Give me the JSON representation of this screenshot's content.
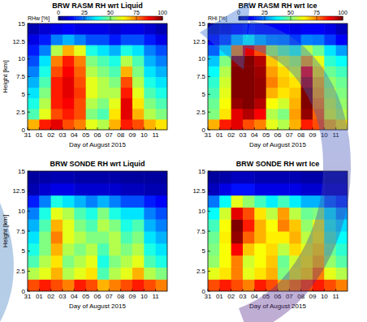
{
  "chart_data": [
    {
      "type": "heatmap",
      "title": "BRW RASM RH wrt Liquid",
      "xlabel": "Day of August 2015",
      "ylabel": "Height [km]",
      "x": [
        "31",
        "01",
        "02",
        "03",
        "04",
        "05",
        "06",
        "07",
        "08",
        "09",
        "10",
        "11"
      ],
      "y_bins": [
        0,
        1.5,
        3,
        4.5,
        6,
        7.5,
        9,
        10.5,
        12,
        13.5,
        15
      ],
      "ylim": [
        0,
        15
      ],
      "yticks": [
        0,
        2.5,
        5,
        7.5,
        10,
        12.5,
        15
      ],
      "cells": [
        [
          70,
          85,
          90,
          80,
          75,
          60,
          55,
          70,
          85,
          80,
          70,
          65
        ],
        [
          45,
          60,
          80,
          85,
          80,
          50,
          45,
          65,
          90,
          70,
          55,
          50
        ],
        [
          40,
          55,
          85,
          88,
          80,
          55,
          50,
          60,
          90,
          65,
          50,
          45
        ],
        [
          35,
          50,
          85,
          90,
          82,
          60,
          55,
          55,
          85,
          60,
          45,
          40
        ],
        [
          30,
          45,
          85,
          90,
          80,
          60,
          55,
          50,
          80,
          55,
          40,
          35
        ],
        [
          25,
          40,
          80,
          88,
          78,
          55,
          50,
          45,
          70,
          50,
          35,
          30
        ],
        [
          20,
          35,
          75,
          85,
          75,
          50,
          45,
          40,
          55,
          45,
          30,
          25
        ],
        [
          15,
          25,
          55,
          70,
          60,
          40,
          35,
          30,
          40,
          35,
          25,
          20
        ],
        [
          10,
          15,
          25,
          30,
          25,
          20,
          20,
          15,
          20,
          20,
          15,
          10
        ],
        [
          5,
          8,
          10,
          12,
          10,
          10,
          10,
          8,
          10,
          10,
          8,
          5
        ]
      ],
      "colorbar": {
        "label": "RHw [%]",
        "lim": [
          0,
          100
        ],
        "ticks": [
          0,
          25,
          50,
          75,
          100
        ]
      }
    },
    {
      "type": "heatmap",
      "title": "BRW RASM RH wrt Ice",
      "xlabel": "Day of August 2015",
      "x": [
        "31",
        "01",
        "02",
        "03",
        "04",
        "05",
        "06",
        "07",
        "08",
        "09",
        "10",
        "11"
      ],
      "y_bins": [
        0,
        1.5,
        3,
        4.5,
        6,
        7.5,
        9,
        10.5,
        12,
        13.5,
        15
      ],
      "ylim": [
        0,
        15
      ],
      "yticks": [
        0,
        2.5,
        5,
        7.5,
        10,
        12.5,
        15
      ],
      "cells": [
        [
          70,
          85,
          90,
          80,
          75,
          60,
          55,
          70,
          85,
          80,
          70,
          65
        ],
        [
          50,
          65,
          90,
          95,
          88,
          55,
          50,
          72,
          98,
          78,
          60,
          55
        ],
        [
          48,
          62,
          98,
          100,
          95,
          62,
          58,
          70,
          100,
          75,
          58,
          52
        ],
        [
          45,
          60,
          100,
          100,
          98,
          70,
          65,
          68,
          100,
          72,
          55,
          50
        ],
        [
          42,
          58,
          100,
          100,
          98,
          75,
          68,
          65,
          95,
          70,
          52,
          48
        ],
        [
          38,
          55,
          100,
          100,
          97,
          72,
          66,
          60,
          88,
          66,
          48,
          44
        ],
        [
          32,
          50,
          98,
          100,
          95,
          68,
          60,
          55,
          72,
          60,
          42,
          38
        ],
        [
          22,
          35,
          75,
          90,
          80,
          55,
          48,
          42,
          55,
          48,
          35,
          28
        ],
        [
          12,
          18,
          30,
          38,
          30,
          25,
          24,
          18,
          25,
          24,
          18,
          12
        ],
        [
          5,
          8,
          12,
          14,
          12,
          12,
          12,
          10,
          12,
          12,
          10,
          6
        ]
      ],
      "colorbar": {
        "label": "RHi [%]",
        "lim": [
          0,
          100
        ],
        "ticks": [
          0,
          25,
          50,
          75,
          100
        ]
      }
    },
    {
      "type": "heatmap",
      "title": "BRW SONDE RH wrt Liquid",
      "xlabel": "Day of August 2015",
      "ylabel": "Height [km]",
      "x": [
        "31",
        "01",
        "02",
        "03",
        "04",
        "05",
        "06",
        "07",
        "08",
        "09",
        "10",
        "11"
      ],
      "y_bins": [
        0,
        1.5,
        3,
        4.5,
        6,
        7.5,
        9,
        10.5,
        12,
        13.5,
        15
      ],
      "ylim": [
        0,
        15
      ],
      "yticks": [
        0,
        2.5,
        5,
        7.5,
        10,
        12.5,
        15
      ],
      "cells": [
        [
          80,
          85,
          80,
          75,
          85,
          80,
          70,
          75,
          80,
          85,
          80,
          75
        ],
        [
          55,
          60,
          70,
          55,
          60,
          65,
          45,
          55,
          60,
          70,
          55,
          50
        ],
        [
          45,
          55,
          65,
          50,
          55,
          60,
          40,
          50,
          55,
          60,
          45,
          40
        ],
        [
          40,
          50,
          70,
          55,
          50,
          55,
          45,
          55,
          50,
          55,
          40,
          35
        ],
        [
          35,
          50,
          75,
          60,
          55,
          50,
          50,
          55,
          45,
          50,
          35,
          30
        ],
        [
          30,
          45,
          70,
          60,
          50,
          45,
          55,
          50,
          40,
          45,
          30,
          25
        ],
        [
          25,
          40,
          60,
          55,
          45,
          40,
          50,
          40,
          35,
          35,
          25,
          20
        ],
        [
          15,
          25,
          40,
          35,
          30,
          25,
          30,
          25,
          20,
          20,
          15,
          12
        ],
        [
          5,
          8,
          10,
          10,
          8,
          8,
          8,
          8,
          6,
          6,
          5,
          5
        ],
        [
          3,
          4,
          5,
          5,
          4,
          4,
          4,
          4,
          3,
          3,
          3,
          3
        ]
      ],
      "clim": [
        0,
        100
      ]
    },
    {
      "type": "heatmap",
      "title": "BRW SONDE RH wrt Ice",
      "xlabel": "Day of August 2015",
      "x": [
        "31",
        "01",
        "02",
        "03",
        "04",
        "05",
        "06",
        "07",
        "08",
        "09",
        "10",
        "11"
      ],
      "y_bins": [
        0,
        1.5,
        3,
        4.5,
        6,
        7.5,
        9,
        10.5,
        12,
        13.5,
        15
      ],
      "ylim": [
        0,
        15
      ],
      "yticks": [
        0,
        2.5,
        5,
        7.5,
        10,
        12.5,
        15
      ],
      "cells": [
        [
          80,
          85,
          80,
          75,
          85,
          80,
          70,
          75,
          80,
          85,
          80,
          75
        ],
        [
          60,
          65,
          75,
          60,
          65,
          70,
          50,
          60,
          65,
          75,
          60,
          55
        ],
        [
          52,
          62,
          75,
          58,
          62,
          68,
          48,
          58,
          62,
          68,
          52,
          46
        ],
        [
          50,
          62,
          88,
          68,
          62,
          66,
          56,
          66,
          60,
          65,
          48,
          42
        ],
        [
          48,
          64,
          98,
          78,
          70,
          64,
          64,
          70,
          56,
          62,
          44,
          38
        ],
        [
          44,
          62,
          100,
          85,
          70,
          62,
          75,
          68,
          52,
          60,
          40,
          34
        ],
        [
          38,
          58,
          90,
          80,
          65,
          56,
          72,
          56,
          48,
          50,
          36,
          28
        ],
        [
          24,
          38,
          60,
          52,
          44,
          36,
          44,
          36,
          30,
          30,
          22,
          18
        ],
        [
          6,
          10,
          14,
          14,
          10,
          10,
          10,
          10,
          8,
          8,
          6,
          6
        ],
        [
          3,
          4,
          6,
          6,
          5,
          5,
          5,
          5,
          4,
          4,
          3,
          3
        ]
      ],
      "clim": [
        0,
        100
      ]
    }
  ]
}
